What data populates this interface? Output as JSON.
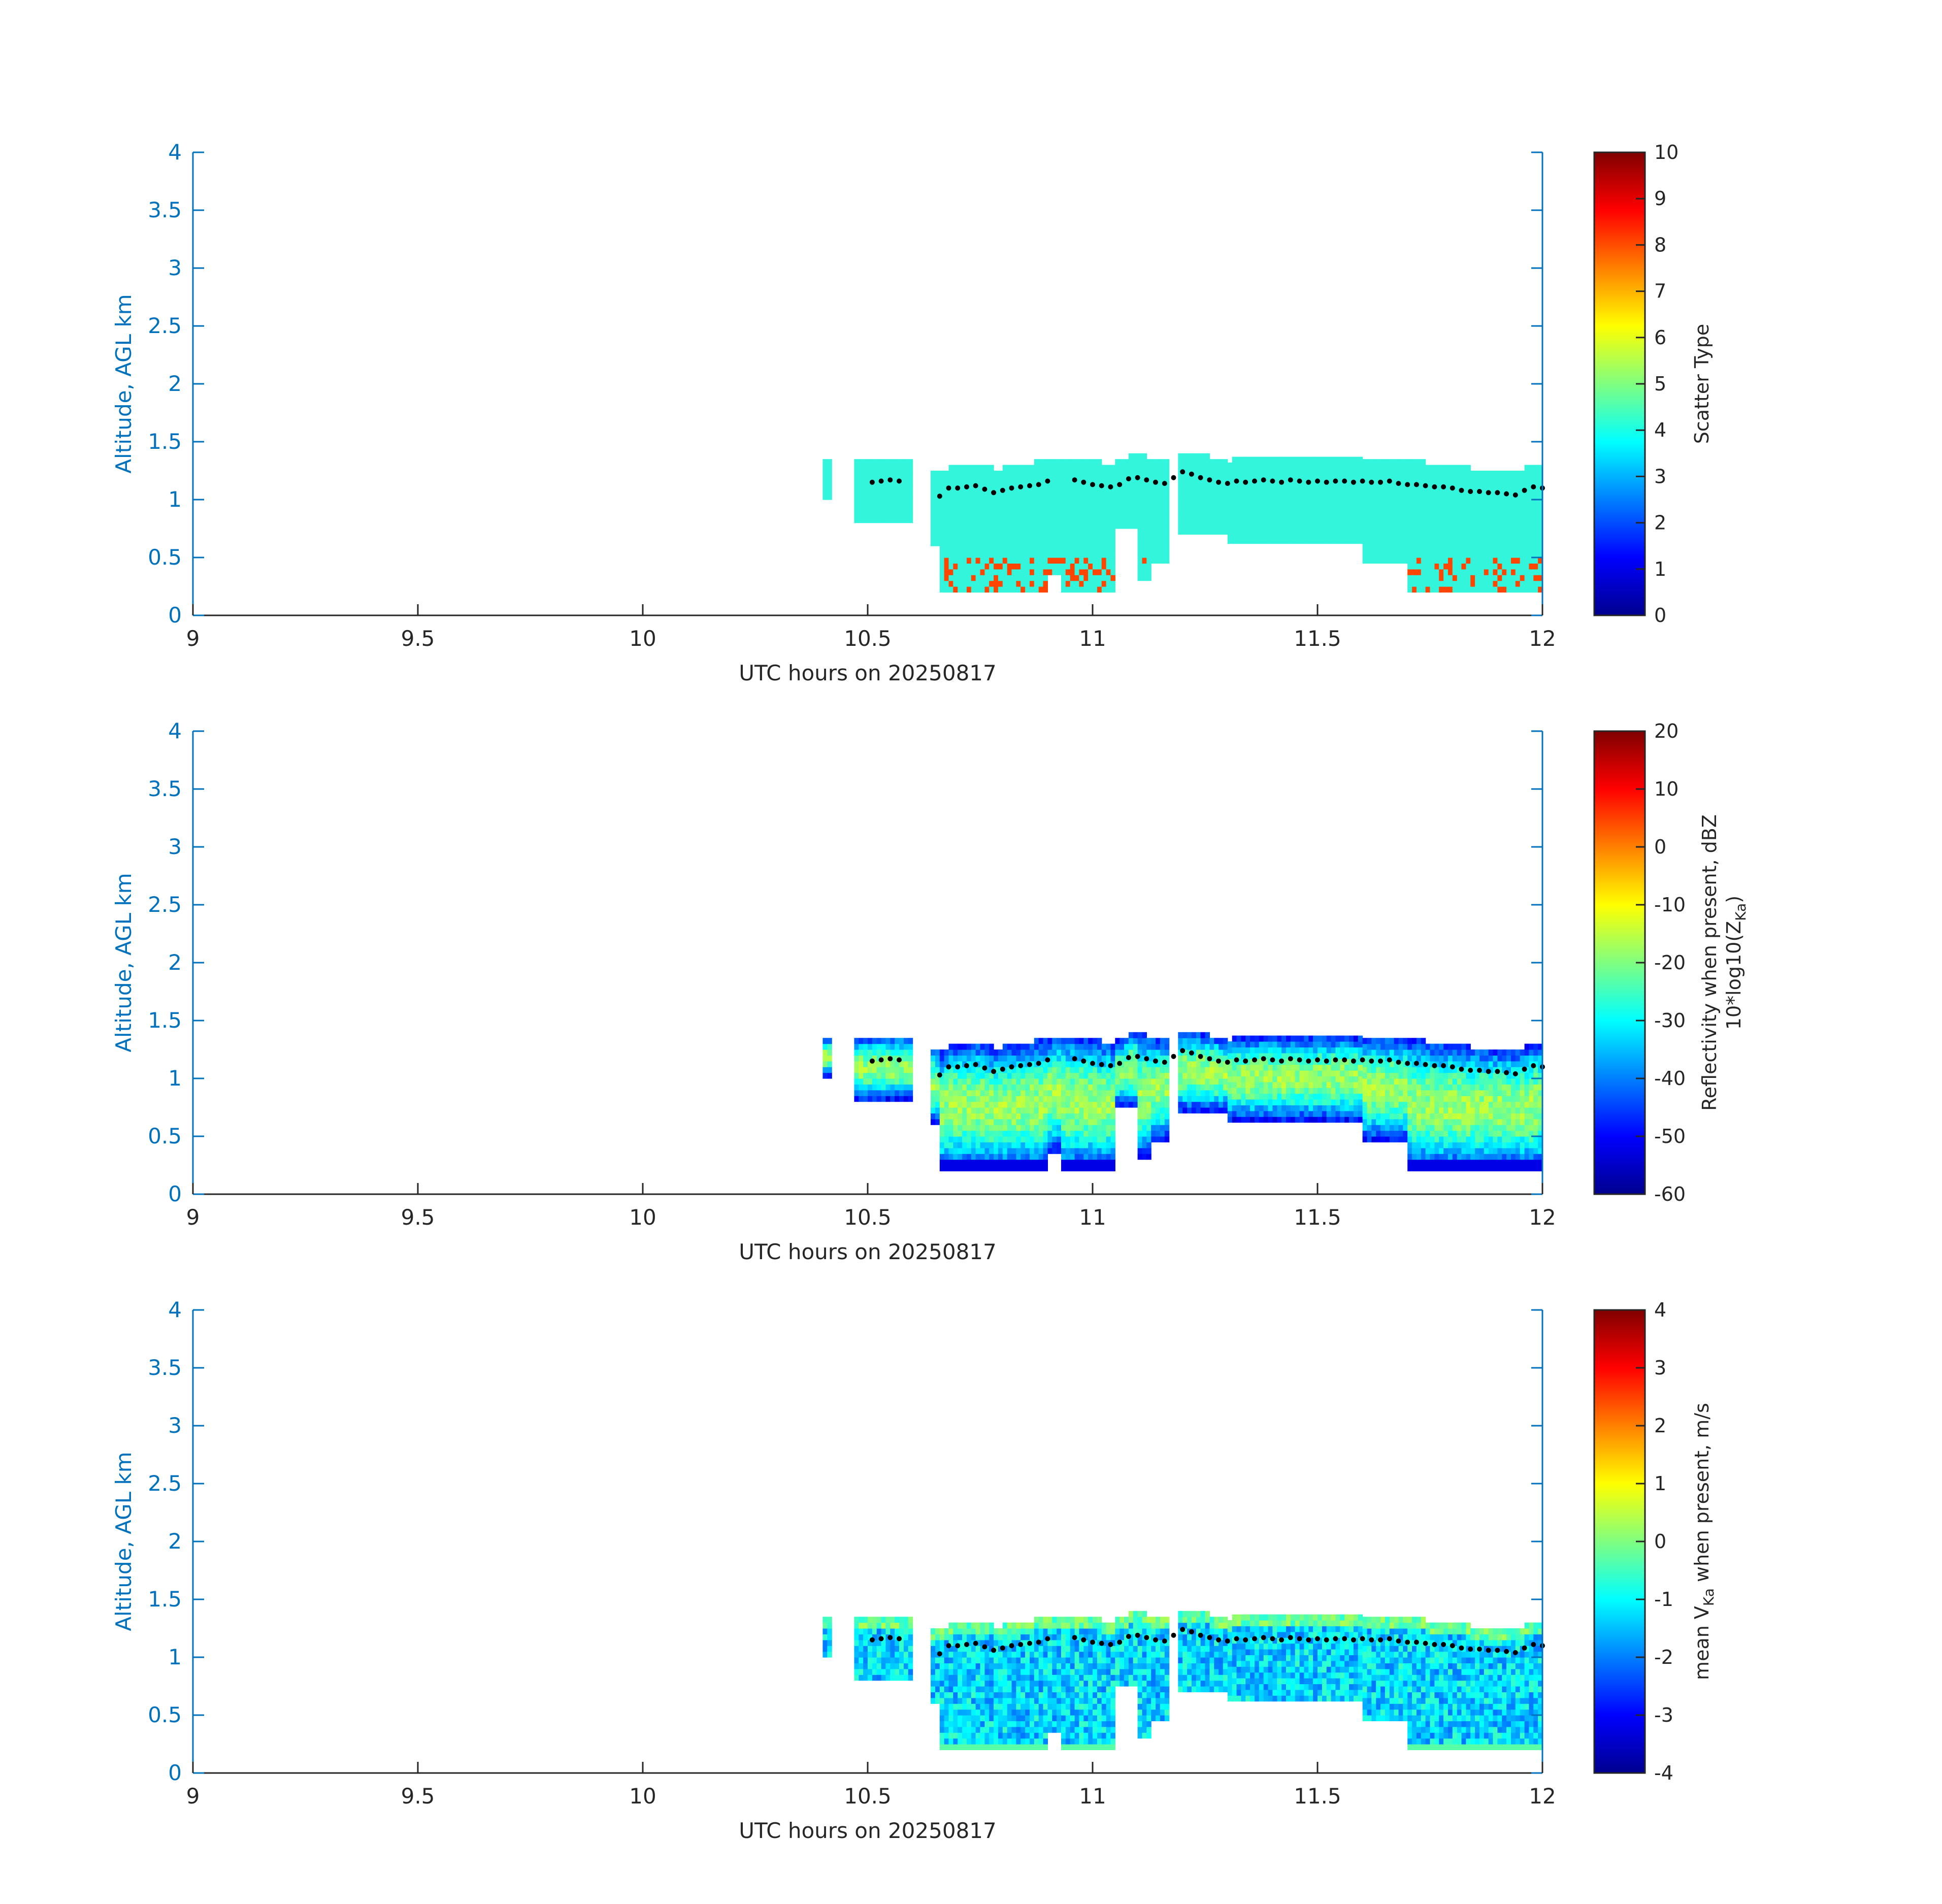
{
  "colormap": "jet",
  "colors": {
    "left_axis": "#0072BD",
    "x_axis": "#262626",
    "cloud_top_dots": "#000000"
  },
  "chart_data": [
    {
      "type": "heatmap",
      "title": "",
      "xlabel": "UTC hours on 20250817",
      "ylabel": "Altitude, AGL km",
      "xlim": [
        9,
        12
      ],
      "ylim": [
        0,
        4
      ],
      "xticks": [
        "9",
        "9.5",
        "10",
        "10.5",
        "11",
        "11.5",
        "12"
      ],
      "yticks": [
        "0",
        "0.5",
        "1",
        "1.5",
        "2",
        "2.5",
        "3",
        "3.5",
        "4"
      ],
      "colorbar": {
        "label": "Scatter Type",
        "sublabel": "",
        "lim": [
          0,
          10
        ],
        "ticks": [
          "0",
          "1",
          "2",
          "3",
          "4",
          "5",
          "6",
          "7",
          "8",
          "9",
          "10"
        ]
      },
      "grid": false,
      "legend": "none"
    },
    {
      "type": "heatmap",
      "title": "",
      "xlabel": "UTC hours on 20250817",
      "ylabel": "Altitude, AGL km",
      "xlim": [
        9,
        12
      ],
      "ylim": [
        0,
        4
      ],
      "xticks": [
        "9",
        "9.5",
        "10",
        "10.5",
        "11",
        "11.5",
        "12"
      ],
      "yticks": [
        "0",
        "0.5",
        "1",
        "1.5",
        "2",
        "2.5",
        "3",
        "3.5",
        "4"
      ],
      "colorbar": {
        "label": "Reflectivity when present, dBZ",
        "sublabel": "10*log10(Z",
        "sublabel_sub": "Ka",
        "sublabel_end": ")",
        "lim": [
          -60,
          20
        ],
        "ticks": [
          "-60",
          "-50",
          "-40",
          "-30",
          "-20",
          "-10",
          "0",
          "10",
          "20"
        ]
      },
      "grid": false,
      "legend": "none"
    },
    {
      "type": "heatmap",
      "title": "",
      "xlabel": "UTC hours on 20250817",
      "ylabel": "Altitude, AGL km",
      "xlim": [
        9,
        12
      ],
      "ylim": [
        0,
        4
      ],
      "xticks": [
        "9",
        "9.5",
        "10",
        "10.5",
        "11",
        "11.5",
        "12"
      ],
      "yticks": [
        "0",
        "0.5",
        "1",
        "1.5",
        "2",
        "2.5",
        "3",
        "3.5",
        "4"
      ],
      "colorbar": {
        "label_pre": "mean V",
        "label_sub": "Ka",
        "label_post": " when present, m/s",
        "lim": [
          -4,
          4
        ],
        "ticks": [
          "-4",
          "-3",
          "-2",
          "-1",
          "0",
          "1",
          "2",
          "3",
          "4"
        ]
      },
      "grid": false,
      "legend": "none"
    }
  ],
  "cloud_top": {
    "hours": [
      10.51,
      10.53,
      10.55,
      10.57,
      10.66,
      10.68,
      10.7,
      10.72,
      10.74,
      10.76,
      10.78,
      10.8,
      10.82,
      10.84,
      10.86,
      10.88,
      10.9,
      10.96,
      10.98,
      11.0,
      11.02,
      11.04,
      11.06,
      11.08,
      11.1,
      11.12,
      11.14,
      11.16,
      11.18,
      11.2,
      11.22,
      11.24,
      11.26,
      11.28,
      11.3,
      11.32,
      11.34,
      11.36,
      11.38,
      11.4,
      11.42,
      11.44,
      11.46,
      11.48,
      11.5,
      11.52,
      11.54,
      11.56,
      11.58,
      11.6,
      11.62,
      11.64,
      11.66,
      11.68,
      11.7,
      11.72,
      11.74,
      11.76,
      11.78,
      11.8,
      11.82,
      11.84,
      11.86,
      11.88,
      11.9,
      11.92,
      11.94,
      11.96,
      11.98,
      12.0
    ],
    "altitude_km": [
      1.15,
      1.16,
      1.17,
      1.16,
      1.03,
      1.1,
      1.1,
      1.11,
      1.12,
      1.09,
      1.06,
      1.08,
      1.1,
      1.11,
      1.12,
      1.13,
      1.16,
      1.17,
      1.15,
      1.13,
      1.12,
      1.11,
      1.13,
      1.18,
      1.19,
      1.17,
      1.15,
      1.14,
      1.19,
      1.24,
      1.22,
      1.19,
      1.17,
      1.15,
      1.14,
      1.16,
      1.15,
      1.16,
      1.17,
      1.16,
      1.15,
      1.17,
      1.16,
      1.15,
      1.16,
      1.15,
      1.16,
      1.16,
      1.15,
      1.16,
      1.15,
      1.15,
      1.16,
      1.14,
      1.13,
      1.13,
      1.12,
      1.11,
      1.11,
      1.1,
      1.08,
      1.07,
      1.07,
      1.06,
      1.06,
      1.05,
      1.04,
      1.08,
      1.11,
      1.1
    ]
  }
}
